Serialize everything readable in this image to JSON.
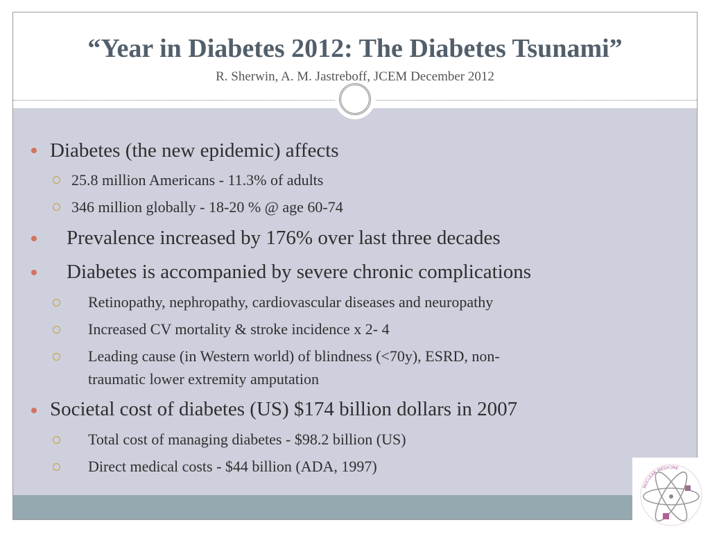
{
  "title": "“Year in Diabetes 2012: The Diabetes Tsunami”",
  "subtitle": "R. Sherwin, A. M. Jastreboff, JCEM December 2012",
  "bullets": [
    {
      "text": "Diabetes (the new epidemic) affects",
      "sub": [
        "25.8 million Americans - 11.3% of adults",
        "346 million globally - 18-20 % @ age 60-74"
      ]
    },
    {
      "text": "Prevalence increased by 176% over last three decades"
    },
    {
      "text": "Diabetes is  accompanied by severe chronic complications",
      "sub": [
        "Retinopathy, nephropathy, cardiovascular diseases and neuropathy",
        "Increased CV mortality & stroke incidence x 2- 4",
        "Leading cause (in Western world) of blindness (<70y), ESRD, non-",
        "traumatic lower extremity amputation"
      ]
    },
    {
      "text": "Societal cost of diabetes (US) $174 billion dollars in 2007",
      "sub": [
        "Total cost of managing diabetes -  $98.2 billion (US)",
        "Direct medical costs - $44 billion (ADA, 1997)"
      ]
    }
  ],
  "logo": {
    "text": "NUCLEAR MEDICINE"
  },
  "colors": {
    "content_bg": "#cfd0dd",
    "footer": "#94aab0",
    "title": "#525f6b",
    "bullet": "#d2735f",
    "sub_bullet": "#c3a33a"
  }
}
